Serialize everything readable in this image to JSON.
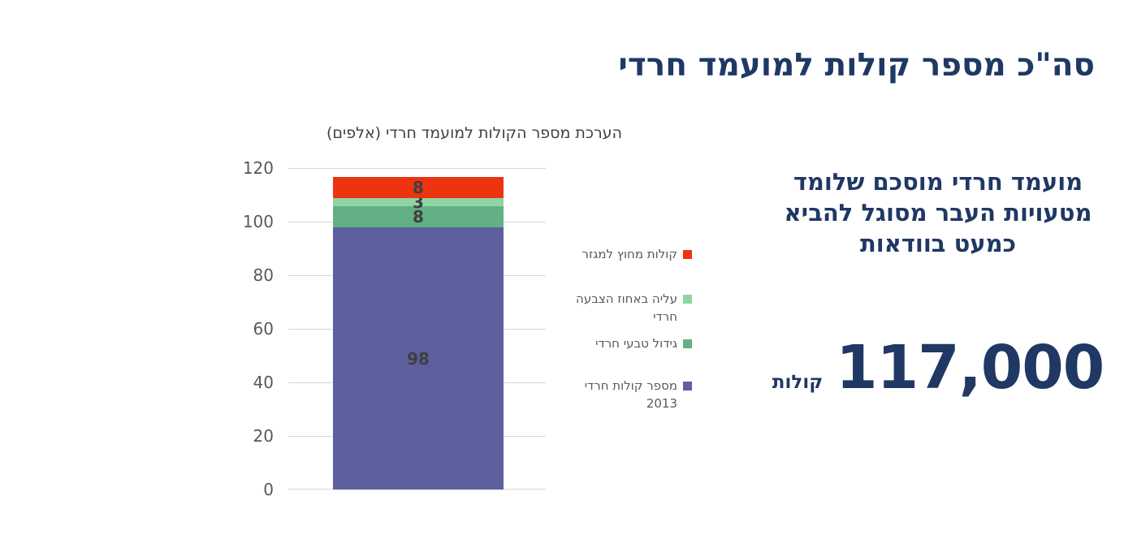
{
  "title": "סה\"כ מספר קולות למועמד חרדי",
  "chart_data": {
    "type": "bar",
    "stacked": true,
    "title": "הערכת מספר הקולות למועמד חרדי (אלפים)",
    "categories": [
      ""
    ],
    "ylim": [
      0,
      120
    ],
    "yticks": [
      0,
      20,
      40,
      60,
      80,
      100,
      120
    ],
    "grid": true,
    "legend_position": "right",
    "series": [
      {
        "name": "מספר קולות חרדי 2013",
        "value": 98,
        "label": "98",
        "color": "#5D5F9E"
      },
      {
        "name": "גידול טבעי חרדי",
        "value": 8,
        "label": "8",
        "color": "#62B083"
      },
      {
        "name": "עליה באחוז הצבעה חרדי",
        "value": 3,
        "label": "3",
        "color": "#8FD4A5"
      },
      {
        "name": "קולות מחוץ למגזר",
        "value": 8,
        "label": "8",
        "color": "#EE3311"
      }
    ]
  },
  "legend": {
    "items": [
      {
        "lines": [
          "קולות מחוץ למגזר"
        ],
        "color": "#EE3311"
      },
      {
        "lines": [
          "עליה באחוז הצבעה",
          "חרדי"
        ],
        "color": "#8FD4A5"
      },
      {
        "lines": [
          "גידול טבעי חרדי"
        ],
        "color": "#62B083"
      },
      {
        "lines": [
          "מספר קולות חרדי",
          "2013"
        ],
        "color": "#5D5F9E"
      }
    ]
  },
  "annotation": {
    "lines": [
      "מועמד חרדי מוסכם שלומד",
      "מטעויות העבר מסוגל להביא",
      "כמעט בוודאות"
    ],
    "big_number": "117,000",
    "big_number_unit": "קולות"
  },
  "colors": {
    "accent_navy": "#1F3864",
    "axis_text_gray": "#595959",
    "subtitle_gray": "#404040",
    "data_label_gray": "#3F3F3F",
    "gridline": "#D8D8D8",
    "background": "#FFFFFF"
  }
}
